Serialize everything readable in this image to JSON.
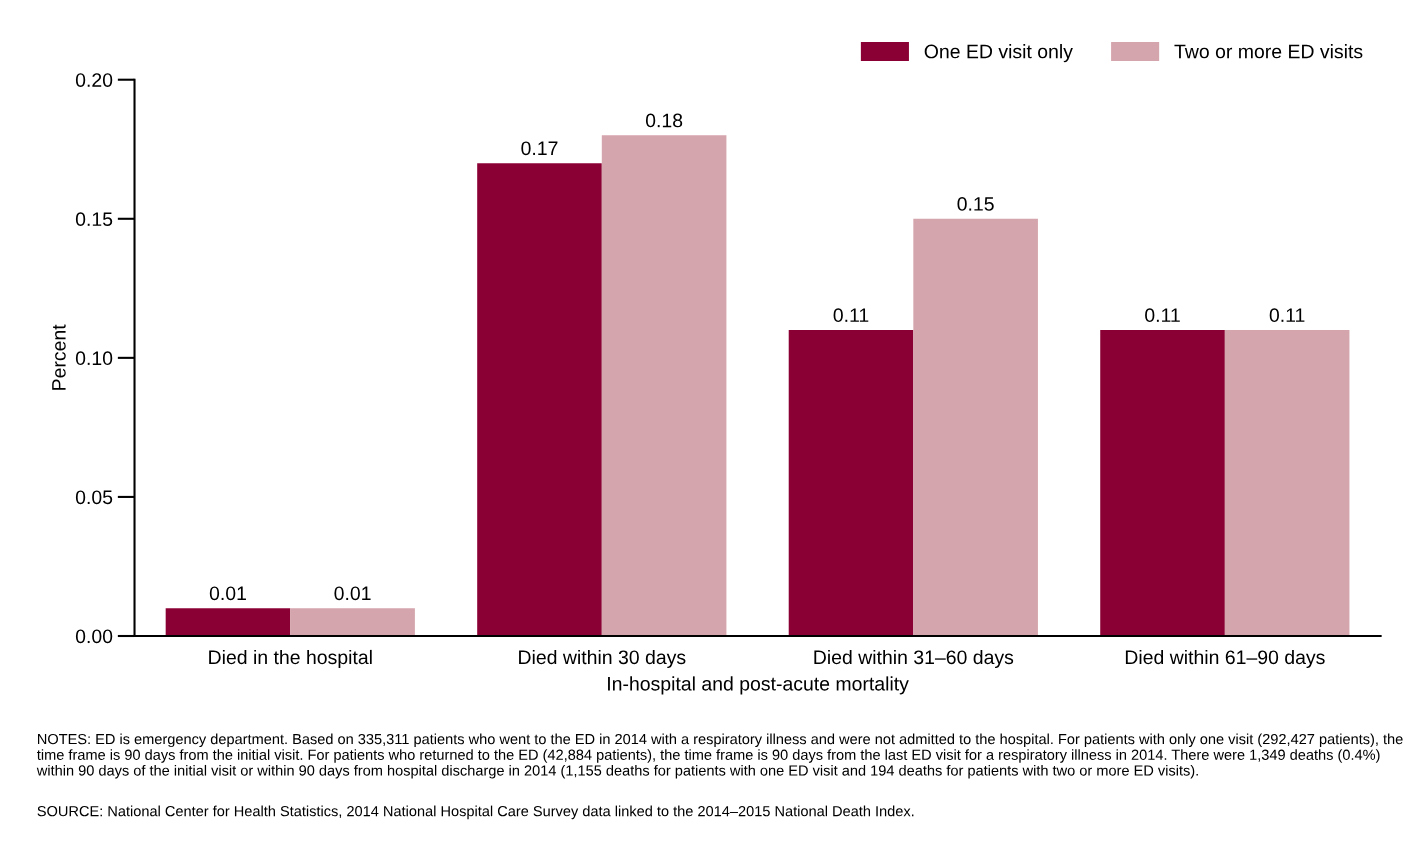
{
  "chart_data": {
    "type": "bar",
    "xlabel": "In-hospital and post-acute mortality",
    "ylabel": "Percent",
    "categories": [
      "Died in the hospital",
      "Died within 30 days",
      "Died within 31–60 days",
      "Died within 61–90 days"
    ],
    "series": [
      {
        "name": "One ED visit only",
        "color": "#8b0034",
        "values": [
          0.01,
          0.17,
          0.11,
          0.11
        ]
      },
      {
        "name": "Two or more ED visits",
        "color": "#d5a5ad",
        "values": [
          0.01,
          0.18,
          0.15,
          0.11
        ]
      }
    ],
    "ylim": [
      0,
      0.2
    ],
    "yticks": [
      {
        "value": 0,
        "label": "0.00"
      },
      {
        "value": 0.05,
        "label": "0.05"
      },
      {
        "value": 0.1,
        "label": "0.10"
      },
      {
        "value": 0.15,
        "label": "0.15"
      },
      {
        "value": 0.2,
        "label": "0.20"
      }
    ],
    "data_labels": true,
    "grid": false,
    "legend": "top right",
    "annotations": [
      "NOTES: ED is emergency department. Based on 335,311 patients who went to the ED in 2014 with a respiratory illness and were not admitted to the hospital. For patients with only one visit (292,427 patients), the time frame is 90 days from the initial visit. For patients who returned to the ED (42,884 patients), the time frame is 90 days from the last ED visit for a respiratory illness in 2014. There were 1,349 deaths (0.4%) within 90 days of the initial visit or within 90 days from hospital discharge in 2014 (1,155 deaths for patients with one ED visit and 194 deaths for patients with two or more ED visits).",
      "SOURCE: National Center for Health Statistics, 2014 National Hospital Care Survey data linked to the 2014–2015 National Death Index."
    ]
  }
}
